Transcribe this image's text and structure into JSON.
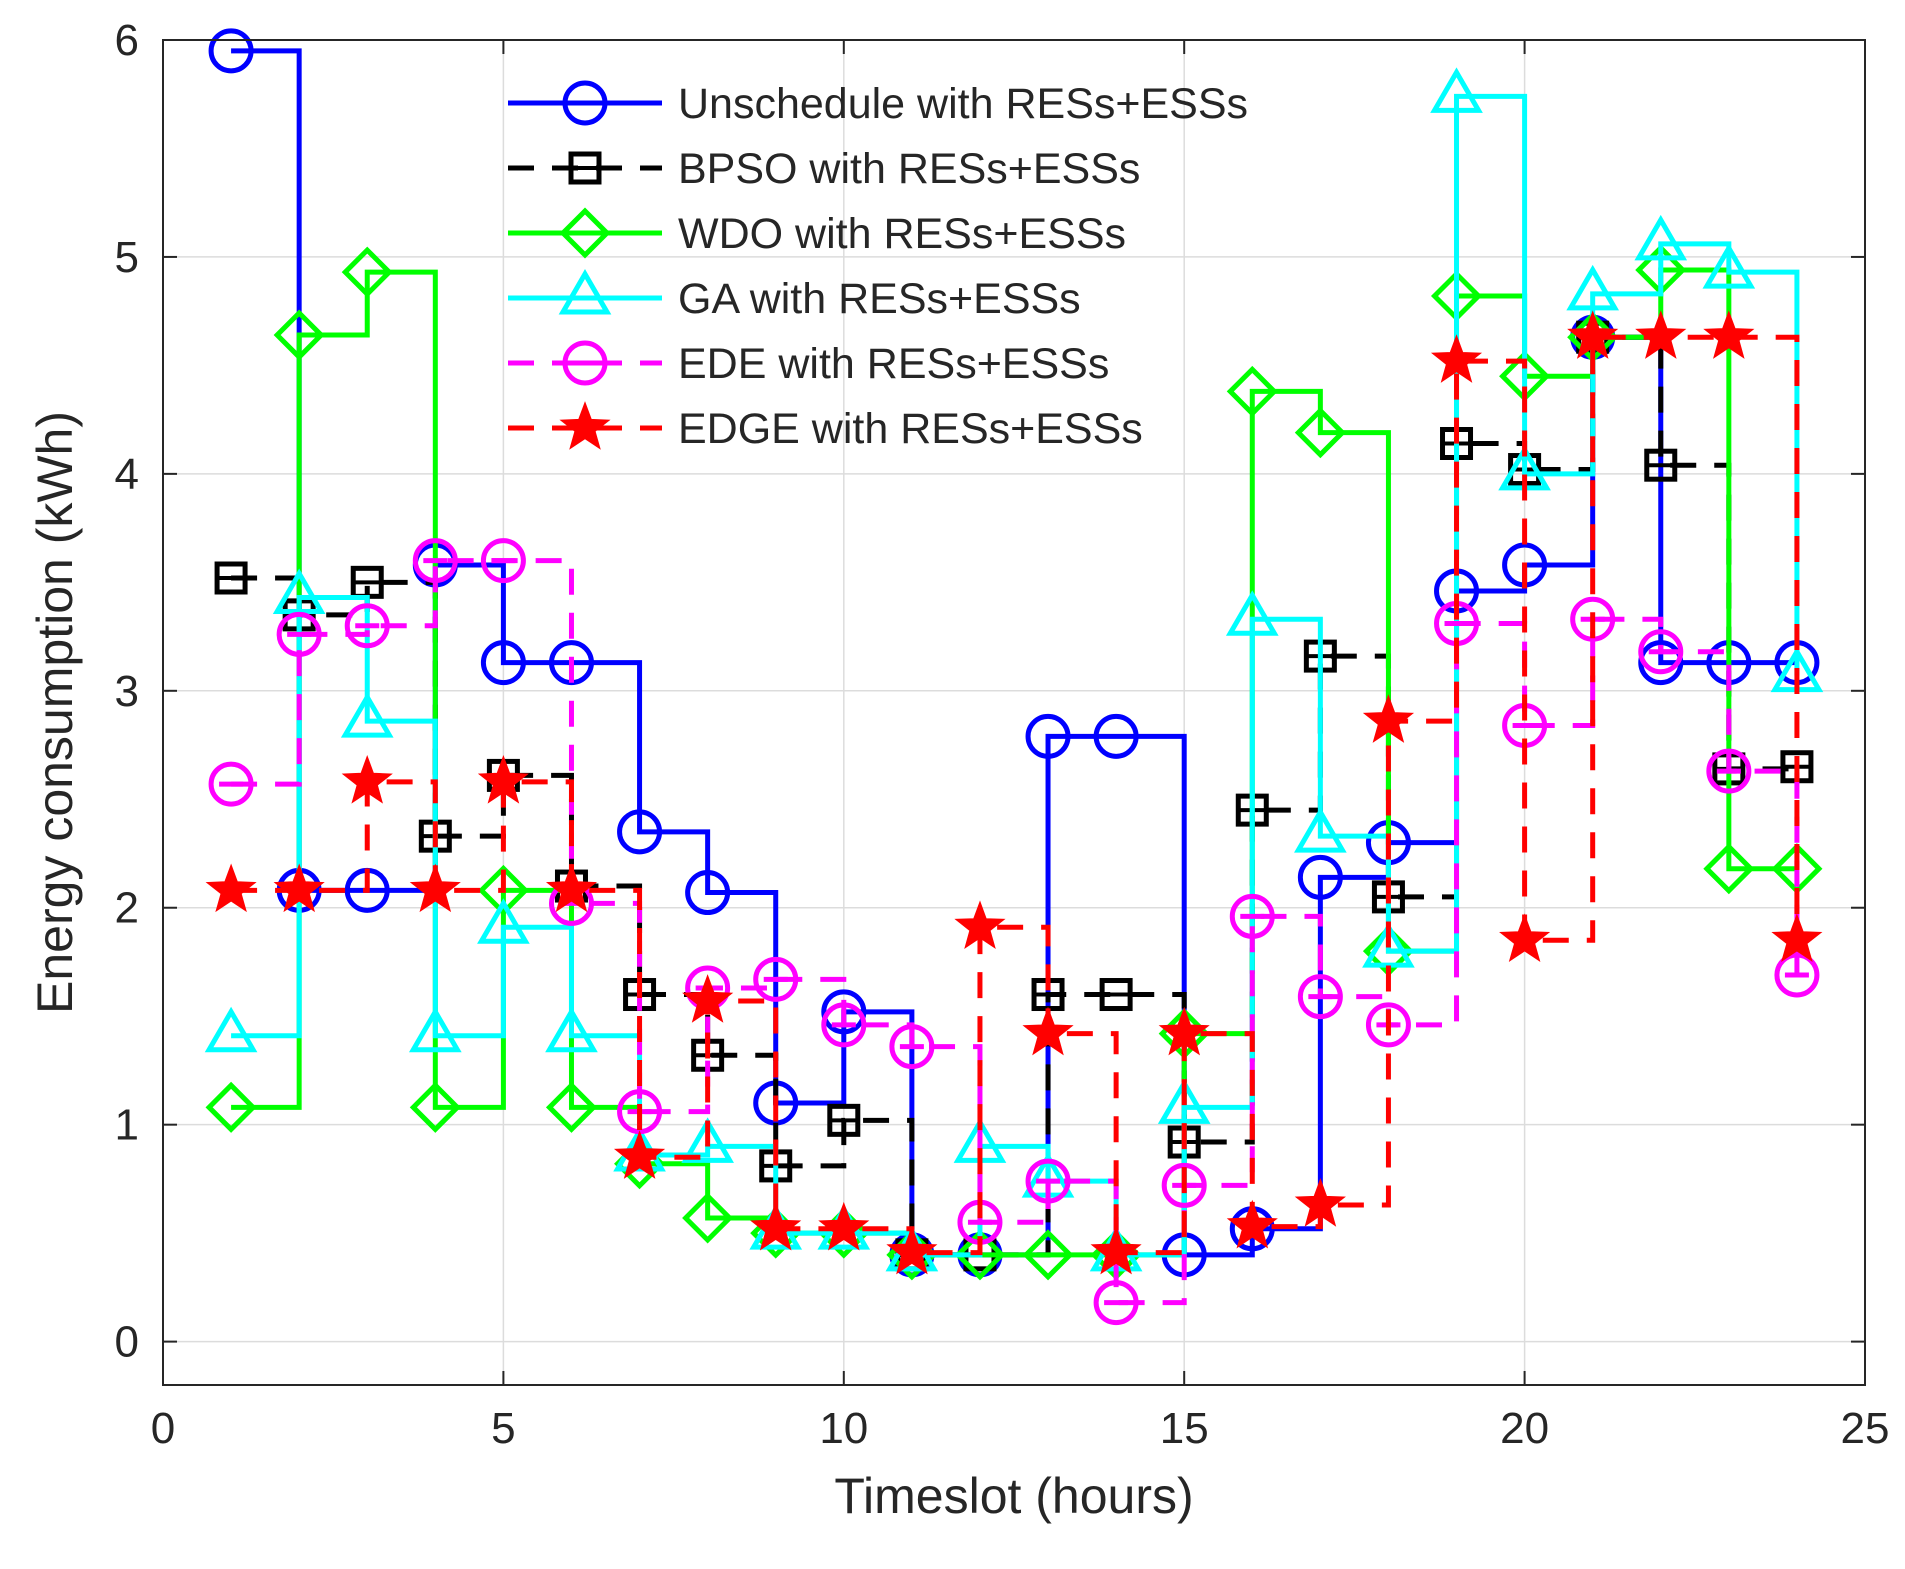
{
  "chart_data": {
    "type": "line",
    "step": "post",
    "title": "",
    "xlabel": "Timeslot (hours)",
    "ylabel": "Energy consumption (kWh)",
    "xlim": [
      0,
      25
    ],
    "ylim": [
      -0.2,
      6
    ],
    "xticks": [
      0,
      5,
      10,
      15,
      20,
      25
    ],
    "yticks": [
      0,
      1,
      2,
      3,
      4,
      5,
      6
    ],
    "grid": true,
    "legend_position": "top-center",
    "x": [
      1,
      2,
      3,
      4,
      5,
      6,
      7,
      8,
      9,
      10,
      11,
      12,
      13,
      14,
      15,
      16,
      17,
      18,
      19,
      20,
      21,
      22,
      23,
      24
    ],
    "series": [
      {
        "name": "Unschedule with RESs+ESSs",
        "color": "#0000ff",
        "linestyle": "solid",
        "marker": "circle",
        "values": [
          5.95,
          2.08,
          2.08,
          3.58,
          3.13,
          3.13,
          2.35,
          2.07,
          1.1,
          1.52,
          0.4,
          0.4,
          2.79,
          2.79,
          0.4,
          0.52,
          2.14,
          2.3,
          3.46,
          3.58,
          4.63,
          3.13,
          3.13,
          3.13
        ]
      },
      {
        "name": "BPSO with RESs+ESSs",
        "color": "#000000",
        "linestyle": "dashed",
        "marker": "square",
        "values": [
          3.52,
          3.35,
          3.5,
          2.33,
          2.61,
          2.1,
          1.6,
          1.32,
          0.81,
          1.02,
          0.4,
          0.4,
          1.6,
          1.6,
          0.92,
          2.45,
          3.16,
          2.05,
          4.14,
          4.02,
          4.63,
          4.04,
          2.64,
          2.65
        ]
      },
      {
        "name": "WDO with RESs+ESSs",
        "color": "#00ff00",
        "linestyle": "solid",
        "marker": "diamond",
        "values": [
          1.08,
          4.64,
          4.93,
          1.08,
          2.08,
          1.08,
          0.82,
          0.57,
          0.5,
          0.5,
          0.4,
          0.4,
          0.4,
          0.4,
          1.42,
          4.38,
          4.19,
          1.8,
          4.82,
          4.45,
          4.63,
          4.94,
          2.18,
          2.18
        ]
      },
      {
        "name": "GA with RESs+ESSs",
        "color": "#00ffff",
        "linestyle": "solid",
        "marker": "triangle",
        "values": [
          1.41,
          3.43,
          2.86,
          1.41,
          1.91,
          1.41,
          0.86,
          0.9,
          0.5,
          0.5,
          0.4,
          0.9,
          0.74,
          0.4,
          1.08,
          3.33,
          2.33,
          1.8,
          5.74,
          4.0,
          4.83,
          5.06,
          4.93,
          3.07
        ]
      },
      {
        "name": "EDE with RESs+ESSs",
        "color": "#ff00ff",
        "linestyle": "dashed",
        "marker": "circle-dash",
        "values": [
          2.57,
          3.26,
          3.3,
          3.6,
          3.6,
          2.02,
          1.06,
          1.63,
          1.67,
          1.46,
          1.36,
          0.55,
          0.74,
          0.18,
          0.72,
          1.96,
          1.59,
          1.46,
          3.31,
          2.84,
          3.33,
          3.18,
          2.63,
          1.69
        ]
      },
      {
        "name": "EDGE with RESs+ESSs",
        "color": "#ff0000",
        "linestyle": "dashed",
        "marker": "star",
        "values": [
          2.08,
          2.08,
          2.58,
          2.08,
          2.58,
          2.08,
          0.85,
          1.57,
          0.52,
          0.52,
          0.41,
          1.91,
          1.42,
          0.41,
          1.42,
          0.53,
          0.63,
          2.86,
          4.52,
          1.85,
          4.63,
          4.63,
          4.63,
          1.85
        ]
      }
    ]
  }
}
